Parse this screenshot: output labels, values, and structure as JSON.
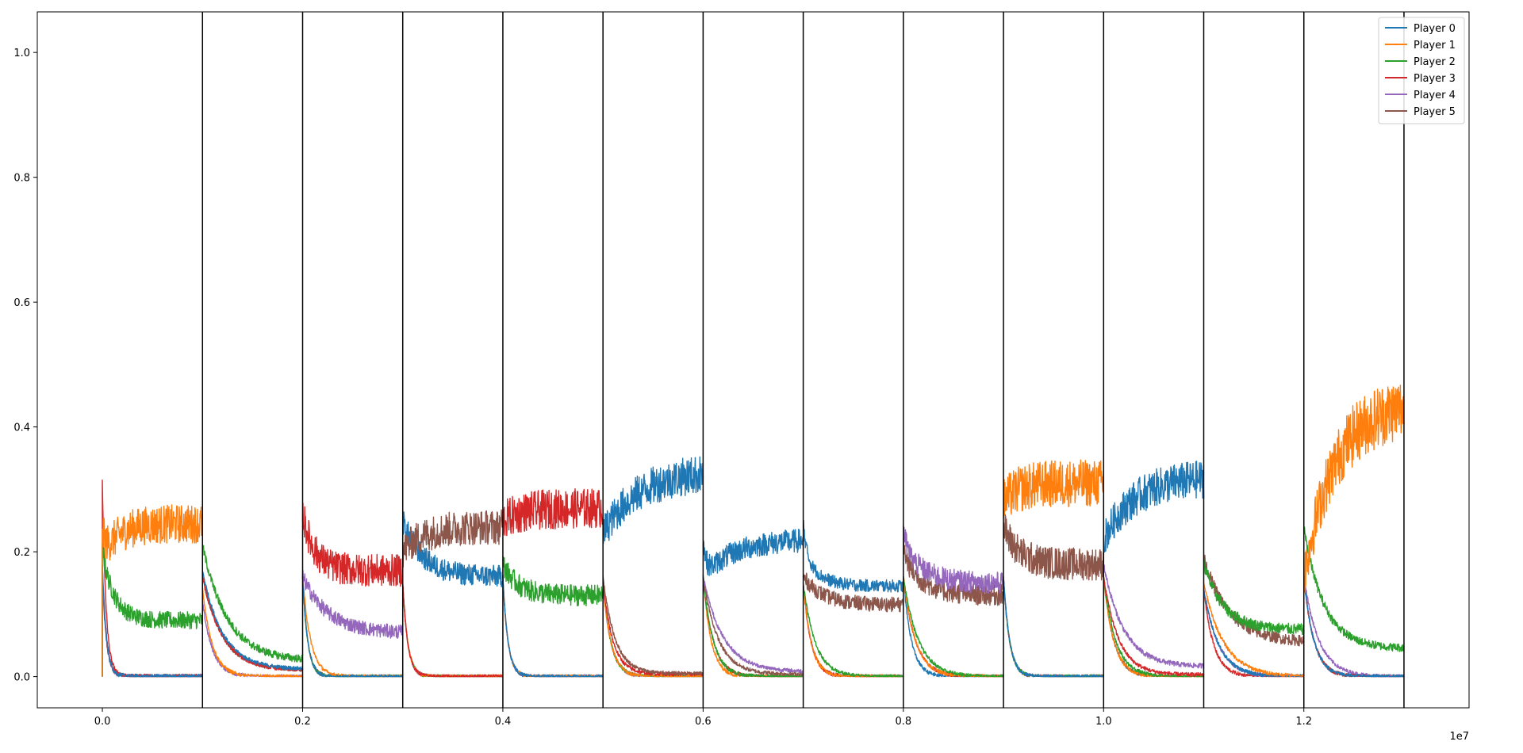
{
  "chart_data": {
    "type": "line",
    "title": "",
    "xlabel": "",
    "ylabel": "",
    "x_offset_text": "1e7",
    "xlim": [
      -0.065,
      1.365
    ],
    "ylim": [
      -0.05,
      1.065
    ],
    "x_ticks": [
      0.0,
      0.2,
      0.4,
      0.6,
      0.8,
      1.0,
      1.2
    ],
    "x_tick_labels": [
      "0.0",
      "0.2",
      "0.4",
      "0.6",
      "0.8",
      "1.0",
      "1.2"
    ],
    "y_ticks": [
      0.0,
      0.2,
      0.4,
      0.6,
      0.8,
      1.0
    ],
    "y_tick_labels": [
      "0.0",
      "0.2",
      "0.4",
      "0.6",
      "0.8",
      "1.0"
    ],
    "grid": false,
    "legend_position": "upper right",
    "segment_boundaries": [
      0.1,
      0.2,
      0.3,
      0.4,
      0.5,
      0.6,
      0.7,
      0.8,
      0.9,
      1.0,
      1.1,
      1.2,
      1.3
    ],
    "series": [
      {
        "name": "Player 0",
        "color": "#1f77b4"
      },
      {
        "name": "Player 1",
        "color": "#ff7f0e"
      },
      {
        "name": "Player 2",
        "color": "#2ca02c"
      },
      {
        "name": "Player 3",
        "color": "#d62728"
      },
      {
        "name": "Player 4",
        "color": "#9467bd"
      },
      {
        "name": "Player 5",
        "color": "#8c564b"
      }
    ],
    "segments": [
      {
        "x_start": 0.0,
        "x_end": 0.1,
        "curves": [
          {
            "series": 1,
            "start": 0.19,
            "end": 0.245,
            "noise": 0.022,
            "tau": 0.15,
            "bump": 0.05
          },
          {
            "series": 2,
            "start": 0.2,
            "end": 0.09,
            "noise": 0.012,
            "tau": 0.12,
            "bump": 0
          },
          {
            "series": 0,
            "start": 0.18,
            "end": 0.0,
            "noise": 0.004,
            "tau": 0.04,
            "bump": 0
          },
          {
            "series": 3,
            "start": 0.22,
            "end": 0.0,
            "noise": 0.004,
            "tau": 0.04,
            "bump": 0.09
          },
          {
            "series": 4,
            "start": 0.18,
            "end": 0.0,
            "noise": 0.004,
            "tau": 0.04,
            "bump": 0
          },
          {
            "series": 5,
            "start": 0.16,
            "end": 0.0,
            "noise": 0.004,
            "tau": 0.04,
            "bump": 0
          }
        ]
      },
      {
        "x_start": 0.1,
        "x_end": 0.2,
        "curves": [
          {
            "series": 2,
            "start": 0.21,
            "end": 0.025,
            "noise": 0.006,
            "tau": 0.25,
            "bump": 0
          },
          {
            "series": 0,
            "start": 0.17,
            "end": 0.012,
            "noise": 0.003,
            "tau": 0.2,
            "bump": 0
          },
          {
            "series": 3,
            "start": 0.16,
            "end": 0.01,
            "noise": 0.003,
            "tau": 0.2,
            "bump": 0
          },
          {
            "series": 5,
            "start": 0.16,
            "end": 0.01,
            "noise": 0.003,
            "tau": 0.2,
            "bump": 0
          },
          {
            "series": 1,
            "start": 0.14,
            "end": 0.0,
            "noise": 0.003,
            "tau": 0.1,
            "bump": 0
          },
          {
            "series": 4,
            "start": 0.12,
            "end": 0.0,
            "noise": 0.003,
            "tau": 0.1,
            "bump": 0
          }
        ]
      },
      {
        "x_start": 0.2,
        "x_end": 0.3,
        "curves": [
          {
            "series": 3,
            "start": 0.26,
            "end": 0.17,
            "noise": 0.02,
            "tau": 0.12,
            "bump": 0
          },
          {
            "series": 4,
            "start": 0.16,
            "end": 0.07,
            "noise": 0.01,
            "tau": 0.25,
            "bump": 0
          },
          {
            "series": 0,
            "start": 0.16,
            "end": 0.0,
            "noise": 0.003,
            "tau": 0.05,
            "bump": 0
          },
          {
            "series": 1,
            "start": 0.16,
            "end": 0.0,
            "noise": 0.003,
            "tau": 0.08,
            "bump": 0
          },
          {
            "series": 2,
            "start": 0.16,
            "end": 0.0,
            "noise": 0.003,
            "tau": 0.05,
            "bump": 0
          },
          {
            "series": 5,
            "start": 0.16,
            "end": 0.0,
            "noise": 0.003,
            "tau": 0.05,
            "bump": 0
          }
        ]
      },
      {
        "x_start": 0.3,
        "x_end": 0.4,
        "curves": [
          {
            "series": 5,
            "start": 0.2,
            "end": 0.24,
            "noise": 0.02,
            "tau": 0.2,
            "bump": 0
          },
          {
            "series": 0,
            "start": 0.25,
            "end": 0.16,
            "noise": 0.014,
            "tau": 0.2,
            "bump": 0
          },
          {
            "series": 3,
            "start": 0.15,
            "end": 0.0,
            "noise": 0.003,
            "tau": 0.05,
            "bump": 0
          },
          {
            "series": 1,
            "start": 0.15,
            "end": 0.0,
            "noise": 0.003,
            "tau": 0.05,
            "bump": 0
          },
          {
            "series": 2,
            "start": 0.15,
            "end": 0.0,
            "noise": 0.003,
            "tau": 0.05,
            "bump": 0
          },
          {
            "series": 4,
            "start": 0.15,
            "end": 0.0,
            "noise": 0.003,
            "tau": 0.05,
            "bump": 0
          }
        ]
      },
      {
        "x_start": 0.4,
        "x_end": 0.5,
        "curves": [
          {
            "series": 3,
            "start": 0.25,
            "end": 0.27,
            "noise": 0.022,
            "tau": 0.2,
            "bump": 0
          },
          {
            "series": 2,
            "start": 0.18,
            "end": 0.13,
            "noise": 0.014,
            "tau": 0.15,
            "bump": 0
          },
          {
            "series": 0,
            "start": 0.16,
            "end": 0.0,
            "noise": 0.003,
            "tau": 0.05,
            "bump": 0
          },
          {
            "series": 1,
            "start": 0.16,
            "end": 0.0,
            "noise": 0.003,
            "tau": 0.05,
            "bump": 0
          },
          {
            "series": 4,
            "start": 0.16,
            "end": 0.0,
            "noise": 0.003,
            "tau": 0.05,
            "bump": 0
          },
          {
            "series": 5,
            "start": 0.16,
            "end": 0.0,
            "noise": 0.003,
            "tau": 0.05,
            "bump": 0
          }
        ]
      },
      {
        "x_start": 0.5,
        "x_end": 0.6,
        "curves": [
          {
            "series": 0,
            "start": 0.23,
            "end": 0.33,
            "noise": 0.02,
            "tau": 0.35,
            "bump": 0
          },
          {
            "series": 5,
            "start": 0.16,
            "end": 0.005,
            "noise": 0.003,
            "tau": 0.12,
            "bump": 0
          },
          {
            "series": 3,
            "start": 0.15,
            "end": 0.004,
            "noise": 0.003,
            "tau": 0.1,
            "bump": 0
          },
          {
            "series": 1,
            "start": 0.15,
            "end": 0.0,
            "noise": 0.003,
            "tau": 0.08,
            "bump": 0
          },
          {
            "series": 2,
            "start": 0.15,
            "end": 0.0,
            "noise": 0.003,
            "tau": 0.08,
            "bump": 0
          },
          {
            "series": 4,
            "start": 0.15,
            "end": 0.0,
            "noise": 0.003,
            "tau": 0.08,
            "bump": 0
          }
        ]
      },
      {
        "x_start": 0.6,
        "x_end": 0.7,
        "curves": [
          {
            "series": 0,
            "start": 0.16,
            "end": 0.22,
            "noise": 0.014,
            "tau": 0.3,
            "bump": 0.06
          },
          {
            "series": 4,
            "start": 0.16,
            "end": 0.008,
            "noise": 0.003,
            "tau": 0.2,
            "bump": 0
          },
          {
            "series": 5,
            "start": 0.16,
            "end": 0.004,
            "noise": 0.003,
            "tau": 0.15,
            "bump": 0
          },
          {
            "series": 2,
            "start": 0.16,
            "end": 0.0,
            "noise": 0.003,
            "tau": 0.1,
            "bump": 0
          },
          {
            "series": 3,
            "start": 0.16,
            "end": 0.0,
            "noise": 0.003,
            "tau": 0.1,
            "bump": 0
          },
          {
            "series": 1,
            "start": 0.16,
            "end": 0.0,
            "noise": 0.003,
            "tau": 0.08,
            "bump": 0
          }
        ]
      },
      {
        "x_start": 0.7,
        "x_end": 0.8,
        "curves": [
          {
            "series": 0,
            "start": 0.2,
            "end": 0.145,
            "noise": 0.008,
            "tau": 0.15,
            "bump": 0.05
          },
          {
            "series": 5,
            "start": 0.16,
            "end": 0.115,
            "noise": 0.01,
            "tau": 0.2,
            "bump": 0
          },
          {
            "series": 2,
            "start": 0.15,
            "end": 0.0,
            "noise": 0.003,
            "tau": 0.12,
            "bump": 0
          },
          {
            "series": 1,
            "start": 0.15,
            "end": 0.0,
            "noise": 0.003,
            "tau": 0.08,
            "bump": 0
          },
          {
            "series": 3,
            "start": 0.15,
            "end": 0.0,
            "noise": 0.003,
            "tau": 0.08,
            "bump": 0
          },
          {
            "series": 4,
            "start": 0.15,
            "end": 0.0,
            "noise": 0.003,
            "tau": 0.08,
            "bump": 0
          }
        ]
      },
      {
        "x_start": 0.8,
        "x_end": 0.9,
        "curves": [
          {
            "series": 4,
            "start": 0.21,
            "end": 0.15,
            "noise": 0.014,
            "tau": 0.2,
            "bump": 0.03
          },
          {
            "series": 5,
            "start": 0.19,
            "end": 0.13,
            "noise": 0.014,
            "tau": 0.2,
            "bump": 0.02
          },
          {
            "series": 2,
            "start": 0.16,
            "end": 0.0,
            "noise": 0.003,
            "tau": 0.15,
            "bump": 0
          },
          {
            "series": 1,
            "start": 0.16,
            "end": 0.0,
            "noise": 0.003,
            "tau": 0.12,
            "bump": 0
          },
          {
            "series": 3,
            "start": 0.16,
            "end": 0.0,
            "noise": 0.003,
            "tau": 0.12,
            "bump": 0
          },
          {
            "series": 0,
            "start": 0.16,
            "end": 0.0,
            "noise": 0.003,
            "tau": 0.08,
            "bump": 0
          }
        ]
      },
      {
        "x_start": 0.9,
        "x_end": 1.0,
        "curves": [
          {
            "series": 1,
            "start": 0.28,
            "end": 0.31,
            "noise": 0.025,
            "tau": 0.15,
            "bump": 0
          },
          {
            "series": 5,
            "start": 0.24,
            "end": 0.18,
            "noise": 0.02,
            "tau": 0.15,
            "bump": 0
          },
          {
            "series": 0,
            "start": 0.16,
            "end": 0.0,
            "noise": 0.003,
            "tau": 0.06,
            "bump": 0
          },
          {
            "series": 2,
            "start": 0.16,
            "end": 0.0,
            "noise": 0.003,
            "tau": 0.06,
            "bump": 0
          },
          {
            "series": 3,
            "start": 0.16,
            "end": 0.0,
            "noise": 0.003,
            "tau": 0.06,
            "bump": 0
          },
          {
            "series": 4,
            "start": 0.16,
            "end": 0.0,
            "noise": 0.003,
            "tau": 0.06,
            "bump": 0
          }
        ]
      },
      {
        "x_start": 1.0,
        "x_end": 1.1,
        "curves": [
          {
            "series": 0,
            "start": 0.22,
            "end": 0.32,
            "noise": 0.02,
            "tau": 0.3,
            "bump": 0
          },
          {
            "series": 4,
            "start": 0.18,
            "end": 0.016,
            "noise": 0.004,
            "tau": 0.2,
            "bump": 0
          },
          {
            "series": 3,
            "start": 0.16,
            "end": 0.003,
            "noise": 0.003,
            "tau": 0.15,
            "bump": 0
          },
          {
            "series": 2,
            "start": 0.16,
            "end": 0.0,
            "noise": 0.003,
            "tau": 0.12,
            "bump": 0
          },
          {
            "series": 1,
            "start": 0.16,
            "end": 0.0,
            "noise": 0.003,
            "tau": 0.1,
            "bump": 0
          },
          {
            "series": 5,
            "start": 0.16,
            "end": 0.0,
            "noise": 0.003,
            "tau": 0.1,
            "bump": 0
          }
        ]
      },
      {
        "x_start": 1.1,
        "x_end": 1.2,
        "curves": [
          {
            "series": 2,
            "start": 0.18,
            "end": 0.075,
            "noise": 0.008,
            "tau": 0.2,
            "bump": 0
          },
          {
            "series": 5,
            "start": 0.19,
            "end": 0.055,
            "noise": 0.008,
            "tau": 0.25,
            "bump": 0
          },
          {
            "series": 1,
            "start": 0.15,
            "end": 0.0,
            "noise": 0.003,
            "tau": 0.2,
            "bump": 0
          },
          {
            "series": 0,
            "start": 0.14,
            "end": 0.0,
            "noise": 0.003,
            "tau": 0.15,
            "bump": 0
          },
          {
            "series": 4,
            "start": 0.14,
            "end": 0.0,
            "noise": 0.003,
            "tau": 0.15,
            "bump": 0
          },
          {
            "series": 3,
            "start": 0.14,
            "end": 0.0,
            "noise": 0.003,
            "tau": 0.1,
            "bump": 0
          }
        ]
      },
      {
        "x_start": 1.2,
        "x_end": 1.3,
        "curves": [
          {
            "series": 1,
            "start": 0.16,
            "end": 0.44,
            "noise": 0.03,
            "tau": 0.3,
            "bump": 0
          },
          {
            "series": 2,
            "start": 0.24,
            "end": 0.045,
            "noise": 0.006,
            "tau": 0.2,
            "bump": 0
          },
          {
            "series": 0,
            "start": 0.16,
            "end": 0.0,
            "noise": 0.003,
            "tau": 0.1,
            "bump": 0
          },
          {
            "series": 3,
            "start": 0.16,
            "end": 0.0,
            "noise": 0.003,
            "tau": 0.1,
            "bump": 0
          },
          {
            "series": 4,
            "start": 0.16,
            "end": 0.0,
            "noise": 0.003,
            "tau": 0.15,
            "bump": 0
          },
          {
            "series": 5,
            "start": 0.16,
            "end": 0.0,
            "noise": 0.003,
            "tau": 0.1,
            "bump": 0
          }
        ]
      }
    ]
  }
}
